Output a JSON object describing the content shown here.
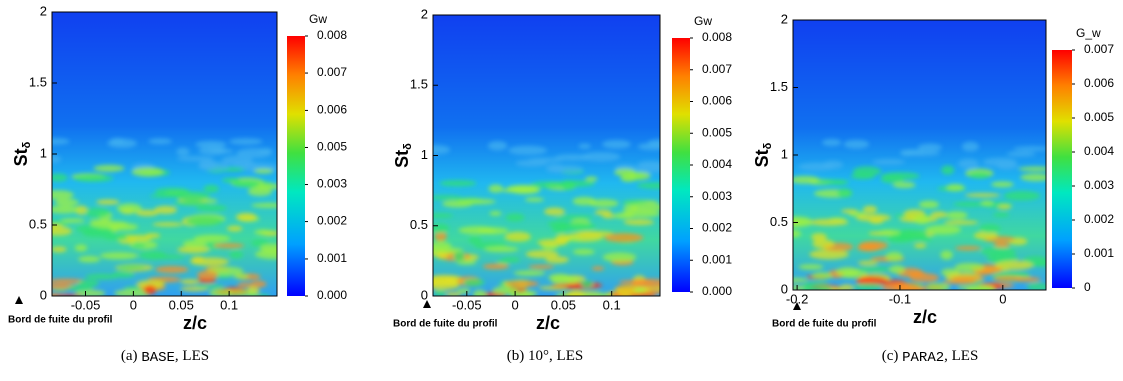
{
  "chart_data": [
    {
      "type": "heatmap",
      "xlabel": "z/c",
      "ylabel": "St",
      "ylabel_sub": "δ",
      "xlim": [
        -0.085,
        0.15
      ],
      "ylim": [
        0,
        2
      ],
      "xticks": [
        -0.05,
        0,
        0.05,
        0.1
      ],
      "yticks": [
        0,
        0.5,
        1,
        1.5,
        2
      ],
      "colorbar_title": "Gw",
      "clim": [
        0,
        0.008
      ],
      "cticks": [
        {
          "value": 0,
          "label": "0.000"
        },
        {
          "value": 0.00114,
          "label": "0.001"
        },
        {
          "value": 0.00229,
          "label": "0.002"
        },
        {
          "value": 0.00343,
          "label": "0.003"
        },
        {
          "value": 0.00457,
          "label": "0.005"
        },
        {
          "value": 0.00571,
          "label": "0.006"
        },
        {
          "value": 0.00686,
          "label": "0.007"
        },
        0.008
      ],
      "annotation": "Bord de fuite du profil",
      "caption": [
        "(a)",
        "BASE",
        ", LES"
      ]
    },
    {
      "type": "heatmap",
      "xlabel": "z/c",
      "ylabel": "St",
      "ylabel_sub": "δ",
      "xlim": [
        -0.085,
        0.15
      ],
      "ylim": [
        0,
        2
      ],
      "xticks": [
        -0.05,
        0,
        0.05,
        0.1
      ],
      "yticks": [
        0,
        0.5,
        1,
        1.5,
        2
      ],
      "colorbar_title": "Gw",
      "clim": [
        0,
        0.008
      ],
      "cticks": [
        {
          "value": 0,
          "label": "0.000"
        },
        0.001,
        0.002,
        0.003,
        0.004,
        0.005,
        0.006,
        0.007,
        0.008
      ],
      "annotation": "Bord de fuite du profil",
      "caption": [
        "(b)",
        "10°",
        ", LES"
      ]
    },
    {
      "type": "heatmap",
      "xlabel": "z/c",
      "ylabel": "St",
      "ylabel_sub": "δ",
      "xlim": [
        -0.204,
        0.042
      ],
      "ylim": [
        0,
        2
      ],
      "xticks": [
        -0.2,
        -0.1,
        0
      ],
      "yticks": [
        0,
        0.5,
        1,
        1.5,
        2
      ],
      "colorbar_title": "G_w",
      "clim": [
        0,
        0.007
      ],
      "cticks": [
        0,
        0.001,
        0.002,
        0.003,
        0.004,
        0.005,
        0.006,
        0.007
      ],
      "annotation": "Bord de fuite du profil",
      "caption": [
        "(c)",
        "PARA2",
        ", LES"
      ]
    }
  ]
}
